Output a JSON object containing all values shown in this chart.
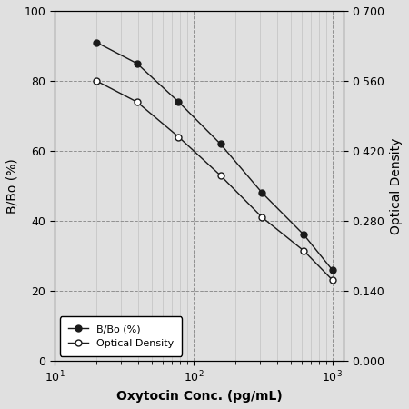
{
  "x_bbo": [
    20,
    39.1,
    78.1,
    156.3,
    312.5,
    625,
    1000
  ],
  "y_bbo": [
    91,
    85,
    74,
    62,
    48,
    36,
    26
  ],
  "x_od": [
    20,
    39.1,
    78.1,
    156.3,
    312.5,
    625,
    1000
  ],
  "y_od": [
    0.56,
    0.518,
    0.448,
    0.371,
    0.287,
    0.22,
    0.162
  ],
  "xlabel": "Oxytocin Conc. (pg/mL)",
  "ylabel_left": "B/Bo (%)",
  "ylabel_right": "Optical Density",
  "legend_bbo": "B/Bo (%)",
  "legend_od": "Optical Density",
  "xlim": [
    10,
    1200
  ],
  "ylim_left": [
    0,
    100
  ],
  "ylim_right": [
    0.0,
    0.7
  ],
  "yticks_left": [
    0,
    20,
    40,
    60,
    80,
    100
  ],
  "yticks_right": [
    0.0,
    0.14,
    0.28,
    0.42,
    0.56,
    0.7
  ],
  "line_color": "#1a1a1a",
  "grid_major_color": "#888888",
  "grid_minor_color": "#aaaaaa",
  "bg_color": "#e0e0e0"
}
